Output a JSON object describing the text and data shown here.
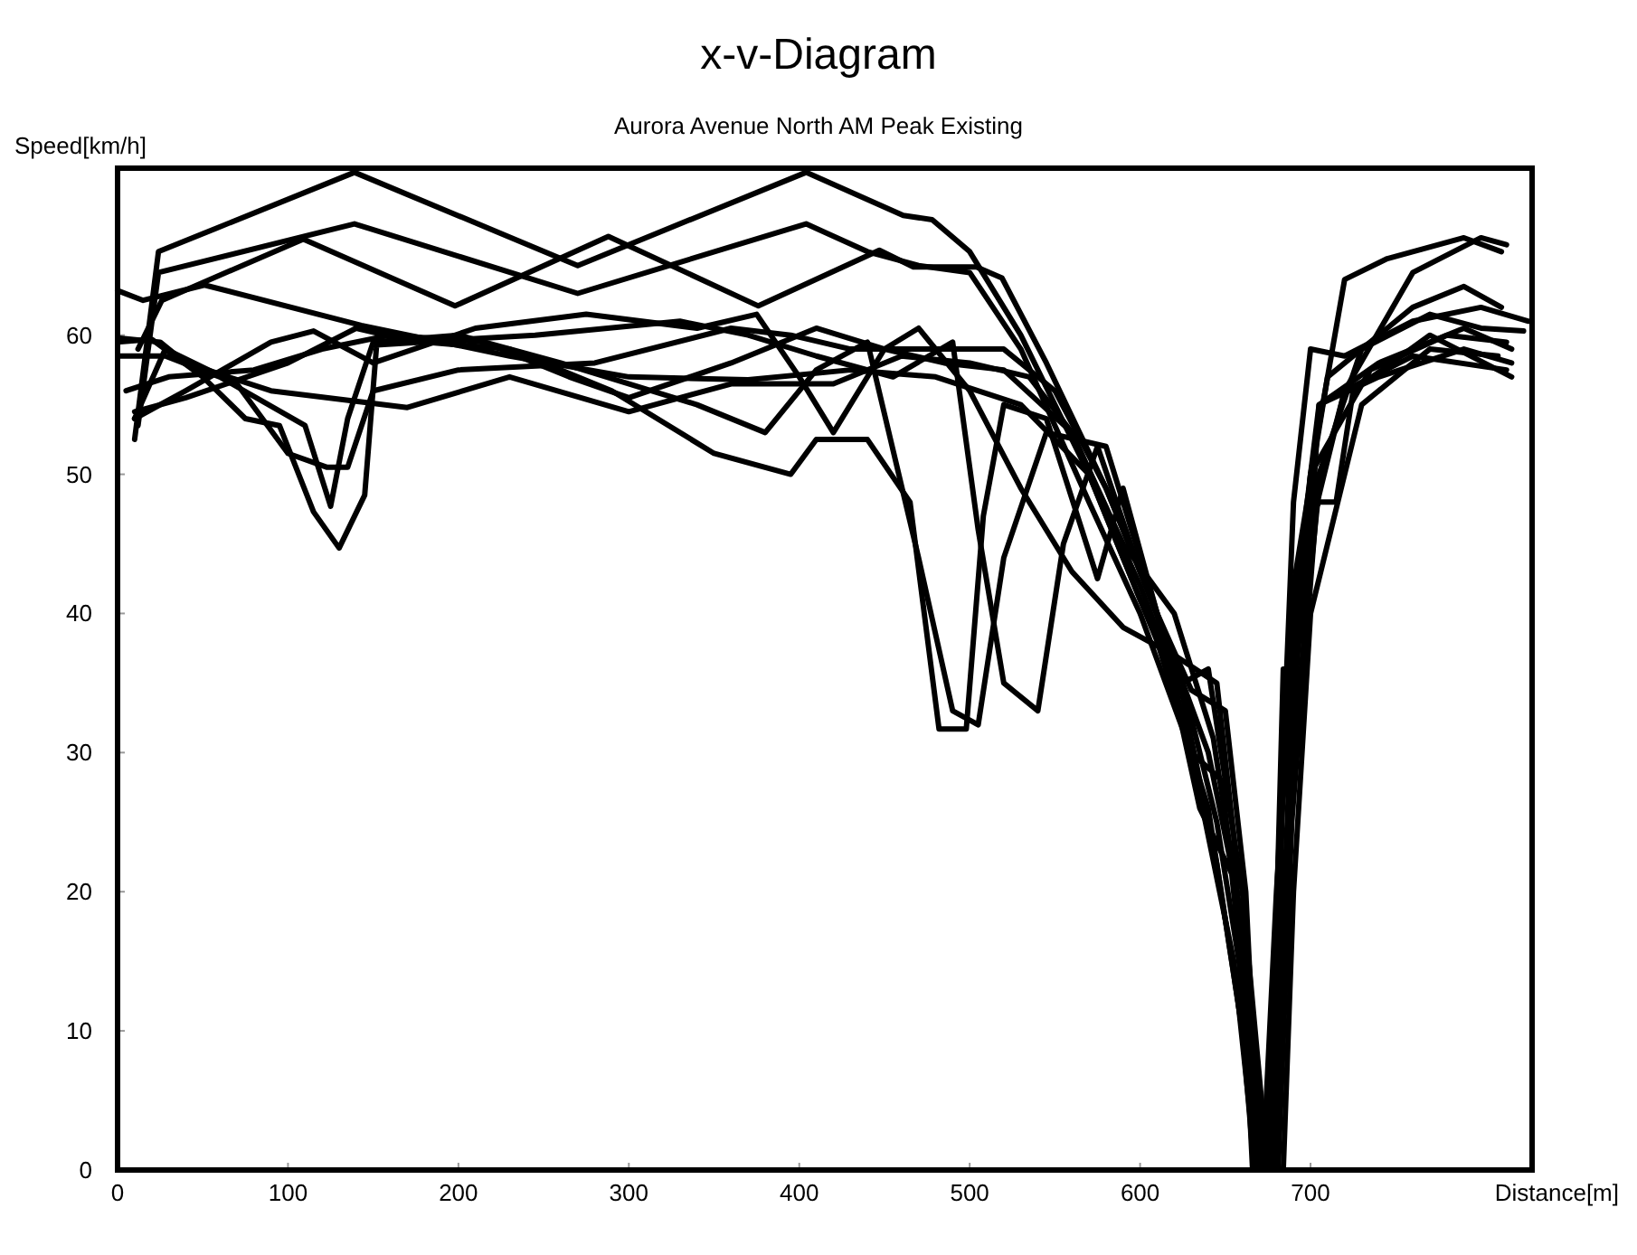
{
  "chart_data": {
    "type": "line",
    "title": "x-v-Diagram",
    "subtitle": "Aurora Avenue North AM Peak Existing",
    "xlabel": "Distance[m]",
    "ylabel": "Speed[km/h]",
    "xlim": [
      0,
      830
    ],
    "ylim": [
      0,
      72
    ],
    "xticks": [
      0,
      100,
      200,
      300,
      400,
      500,
      600,
      700
    ],
    "yticks": [
      0,
      10,
      20,
      30,
      40,
      50,
      60
    ],
    "grid": false,
    "line_style": "solid",
    "marker": "none",
    "series": [
      {
        "color": "#000000",
        "x": [
          10,
          24,
          139,
          270,
          404,
          461,
          478,
          500,
          530,
          570,
          610,
          640,
          660,
          667,
          674,
          682,
          700,
          720,
          760,
          800,
          815
        ],
        "values": [
          52.5,
          66,
          71.7,
          65,
          71.7,
          68.6,
          68.3,
          66,
          60,
          50,
          38,
          26,
          10,
          0,
          0,
          25,
          46,
          56,
          64.5,
          67,
          66.5
        ]
      },
      {
        "color": "#000000",
        "x": [
          12,
          24,
          139,
          270,
          404,
          440,
          470,
          500,
          530,
          570,
          600,
          630,
          655,
          668,
          678,
          688,
          700,
          720,
          745,
          790,
          812
        ],
        "values": [
          53.5,
          64.5,
          68,
          63,
          68,
          66,
          65,
          64.5,
          59,
          48,
          40,
          30,
          15,
          0,
          0,
          30,
          50,
          64,
          65.5,
          67,
          66
        ]
      },
      {
        "color": "#000000",
        "x": [
          12,
          26,
          109,
          198,
          288,
          376,
          447,
          467,
          504,
          519,
          545,
          580,
          610,
          640,
          660,
          672,
          681,
          689,
          705,
          730,
          770,
          800,
          825
        ],
        "values": [
          59,
          62.5,
          66.9,
          62.1,
          67.1,
          62.1,
          66.1,
          64.9,
          64.9,
          64.1,
          58,
          49,
          40,
          30,
          18,
          0,
          0,
          25,
          50,
          59,
          61.5,
          60.5,
          60.3
        ]
      },
      {
        "color": "#000000",
        "x": [
          0,
          15,
          51,
          143,
          230,
          300,
          370,
          430,
          480,
          530,
          570,
          600,
          625,
          640,
          660,
          675,
          684,
          690,
          700,
          730,
          770,
          810
        ],
        "values": [
          63.2,
          62.5,
          63.6,
          60.7,
          58.5,
          57,
          56.8,
          57.5,
          57,
          55,
          50,
          41,
          35,
          36,
          20,
          0,
          0,
          20,
          40,
          55,
          59,
          58.5
        ]
      },
      {
        "color": "#000000",
        "x": [
          0,
          20,
          50,
          75,
          95,
          115,
          130,
          145,
          152,
          180,
          230,
          290,
          350,
          395,
          410,
          440,
          465,
          482,
          498,
          508,
          520,
          545,
          575,
          590,
          610,
          635,
          655,
          665,
          671,
          680,
          690,
          700,
          705,
          720,
          760,
          815
        ],
        "values": [
          59.5,
          59.7,
          57,
          54,
          53.5,
          47.3,
          44.7,
          48.5,
          59.3,
          59.5,
          59,
          56,
          51.5,
          50,
          52.5,
          52.5,
          48,
          31.7,
          31.7,
          47,
          55,
          54,
          42.5,
          49,
          40,
          26,
          21,
          10,
          0,
          0,
          30,
          43,
          49,
          56,
          58.5,
          57.5
        ]
      },
      {
        "color": "#000000",
        "x": [
          0,
          28,
          60,
          110,
          125,
          135,
          150,
          200,
          260,
          340,
          380,
          410,
          440,
          470,
          490,
          505,
          520,
          545,
          580,
          610,
          630,
          648,
          660,
          670,
          678,
          686,
          696,
          705,
          715,
          725,
          770,
          818
        ],
        "values": [
          58.5,
          58.5,
          57,
          53.5,
          47.7,
          54,
          59.5,
          60,
          58,
          55,
          53,
          57.5,
          59.5,
          44,
          33,
          32,
          44,
          53,
          52,
          40,
          30,
          28,
          14,
          0,
          0,
          22,
          46,
          48,
          48,
          56,
          60,
          57
        ]
      },
      {
        "color": "#000000",
        "x": [
          10,
          28,
          70,
          100,
          123,
          135,
          150,
          200,
          280,
          360,
          395,
          430,
          470,
          520,
          550,
          580,
          610,
          630,
          650,
          662,
          670,
          679,
          684,
          690,
          700,
          720,
          760,
          800,
          828
        ],
        "values": [
          54,
          59,
          56.5,
          51.5,
          50.5,
          50.5,
          56,
          57.5,
          58,
          60.5,
          60,
          59,
          59,
          59,
          56,
          49,
          40,
          34.5,
          33,
          20,
          0,
          0,
          30,
          48,
          59,
          58.5,
          61,
          62,
          61
        ]
      },
      {
        "color": "#000000",
        "x": [
          10,
          40,
          90,
          115,
          150,
          210,
          275,
          340,
          375,
          400,
          420,
          450,
          470,
          500,
          530,
          560,
          590,
          620,
          645,
          655,
          662,
          666,
          672,
          680,
          688,
          700,
          735,
          780,
          815
        ],
        "values": [
          54,
          56,
          59.5,
          60.3,
          58,
          60.5,
          61.5,
          60.5,
          61.5,
          57,
          53,
          59,
          60.5,
          56,
          49,
          43,
          39,
          37,
          35,
          24,
          10,
          0,
          0,
          20,
          35,
          50,
          57.5,
          60,
          59.5
        ]
      },
      {
        "color": "#000000",
        "x": [
          5,
          30,
          80,
          120,
          160,
          215,
          265,
          300,
          360,
          410,
          450,
          485,
          520,
          560,
          600,
          625,
          645,
          660,
          668,
          676,
          684,
          695,
          705,
          740,
          790,
          818
        ],
        "values": [
          56,
          57,
          57.5,
          59,
          60,
          59.5,
          57,
          55.5,
          58,
          60.5,
          59,
          58,
          57.5,
          53,
          42,
          34,
          22,
          10,
          0,
          0,
          36,
          36,
          55,
          57,
          59,
          58
        ]
      },
      {
        "color": "#000000",
        "x": [
          10,
          40,
          100,
          140,
          175,
          245,
          330,
          370,
          410,
          455,
          490,
          505,
          520,
          540,
          555,
          575,
          600,
          625,
          645,
          658,
          668,
          676,
          683,
          693,
          705,
          740,
          790,
          818
        ],
        "values": [
          54.5,
          55.5,
          58,
          60.5,
          59.5,
          60,
          61,
          60,
          58.5,
          57,
          59.5,
          46,
          35,
          33,
          45,
          52,
          43,
          35,
          25,
          15,
          0,
          0,
          25,
          43,
          55,
          58,
          60.5,
          59
        ]
      },
      {
        "color": "#000000",
        "x": [
          0,
          25,
          40,
          90,
          170,
          230,
          300,
          360,
          420,
          460,
          500,
          535,
          560,
          590,
          620,
          643,
          653,
          662,
          669,
          677,
          684,
          690,
          710,
          760,
          790,
          812
        ],
        "values": [
          59.8,
          59.5,
          58,
          56,
          54.8,
          57,
          54.5,
          56.5,
          56.5,
          58.5,
          58,
          57,
          53,
          45,
          40,
          31,
          23,
          12,
          0,
          0,
          30,
          42,
          57,
          62,
          63.5,
          62
        ]
      }
    ]
  }
}
